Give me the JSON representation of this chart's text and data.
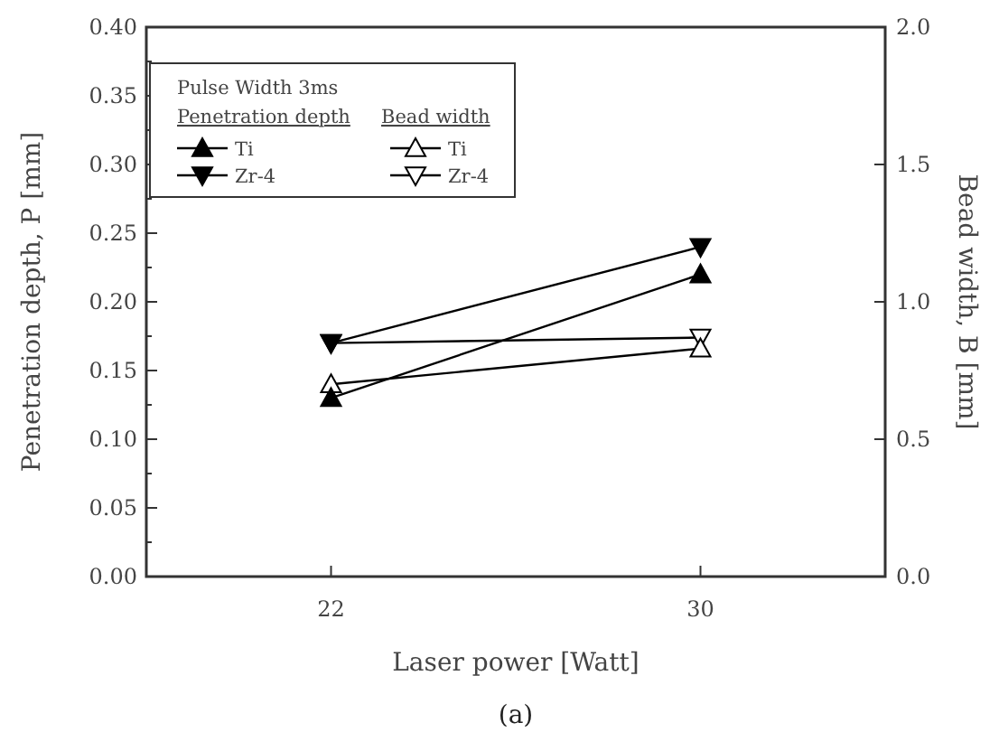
{
  "chart_data": {
    "type": "line",
    "xlabel": "Laser power [Watt]",
    "ylabel": "Penetration depth, P [mm]",
    "y2label": "Bead width, B [mm]",
    "legend_title": "Pulse Width 3ms",
    "annotations": [
      "Penetration depth",
      "Bead width",
      "(a)"
    ],
    "x": [
      22,
      30
    ],
    "xlim": [
      18,
      34
    ],
    "xticks": [
      22,
      30
    ],
    "ylim": [
      0,
      0.4
    ],
    "yticks": [
      {
        "value": 0,
        "label": "0.00"
      },
      {
        "value": 0.025,
        "label": null
      },
      {
        "value": 0.05,
        "label": "0.05"
      },
      {
        "value": 0.075,
        "label": null
      },
      {
        "value": 0.1,
        "label": "0.10"
      },
      {
        "value": 0.125,
        "label": null
      },
      {
        "value": 0.15,
        "label": "0.15"
      },
      {
        "value": 0.175,
        "label": null
      },
      {
        "value": 0.2,
        "label": "0.20"
      },
      {
        "value": 0.225,
        "label": null
      },
      {
        "value": 0.25,
        "label": "0.25"
      },
      {
        "value": 0.275,
        "label": null
      },
      {
        "value": 0.3,
        "label": "0.30"
      },
      {
        "value": 0.325,
        "label": null
      },
      {
        "value": 0.35,
        "label": "0.35"
      },
      {
        "value": 0.375,
        "label": null
      },
      {
        "value": 0.4,
        "label": "0.40"
      }
    ],
    "y2lim": [
      0,
      2
    ],
    "y2ticks": [
      {
        "value": 0,
        "label": "0.0"
      },
      {
        "value": 0.5,
        "label": "0.5"
      },
      {
        "value": 1,
        "label": "1.0"
      },
      {
        "value": 1.5,
        "label": "1.5"
      },
      {
        "value": 2,
        "label": "2.0"
      }
    ],
    "grid": false,
    "legend": "top left",
    "line_style": "solid",
    "series": [
      {
        "name": "Ti",
        "color": "#000000",
        "marker": "triangle",
        "values": [
          0.13,
          0.22
        ]
      },
      {
        "name": "Zr-4",
        "color": "#000000",
        "marker": "triangle-down",
        "values": [
          0.17,
          0.24
        ]
      },
      {
        "name": "Ti",
        "color": "#000000",
        "marker": "triangle-open",
        "axis": "y2",
        "values": [
          0.7,
          0.83
        ]
      },
      {
        "name": "Zr-4",
        "color": "#000000",
        "marker": "triangle-down-open",
        "axis": "y2",
        "values": [
          0.85,
          0.87
        ]
      }
    ]
  }
}
